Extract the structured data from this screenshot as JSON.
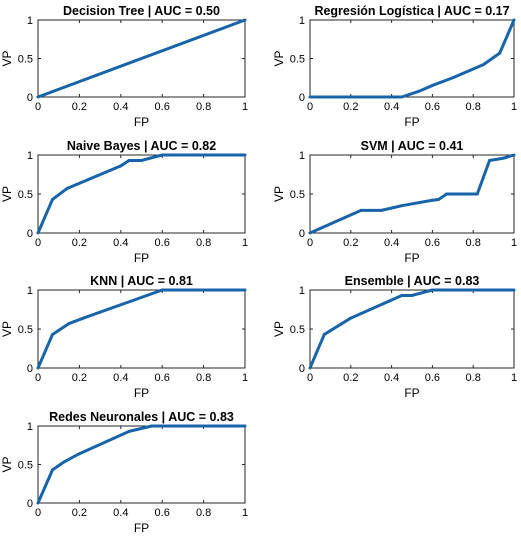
{
  "chart_data": [
    {
      "type": "line",
      "title": "Decision Tree | AUC = 0.50",
      "xlabel": "FP",
      "ylabel": "VP",
      "xlim": [
        0,
        1
      ],
      "ylim": [
        0,
        1
      ],
      "xticks": [
        "0",
        "0.2",
        "0.4",
        "0.6",
        "0.8",
        "1"
      ],
      "yticks": [
        "0",
        "0.5",
        "1"
      ],
      "grid": false,
      "series": [
        {
          "color": "#1764ab",
          "x": [
            0,
            1
          ],
          "y": [
            0,
            1
          ]
        }
      ]
    },
    {
      "type": "line",
      "title": "Regresión Logística | AUC = 0.17",
      "xlabel": "FP",
      "ylabel": "VP",
      "xlim": [
        0,
        1
      ],
      "ylim": [
        0,
        1
      ],
      "xticks": [
        "0",
        "0.2",
        "0.4",
        "0.6",
        "0.8",
        "1"
      ],
      "yticks": [
        "0",
        "0.5",
        "1"
      ],
      "grid": false,
      "series": [
        {
          "color": "#1764ab",
          "x": [
            0,
            0.45,
            0.53,
            0.6,
            0.7,
            0.85,
            0.93,
            1
          ],
          "y": [
            0,
            0,
            0.07,
            0.15,
            0.25,
            0.42,
            0.57,
            1
          ]
        }
      ]
    },
    {
      "type": "line",
      "title": "Naive Bayes | AUC = 0.82",
      "xlabel": "FP",
      "ylabel": "VP",
      "xlim": [
        0,
        1
      ],
      "ylim": [
        0,
        1
      ],
      "xticks": [
        "0",
        "0.2",
        "0.4",
        "0.6",
        "0.8",
        "1"
      ],
      "yticks": [
        "0",
        "0.5",
        "1"
      ],
      "grid": false,
      "series": [
        {
          "color": "#1764ab",
          "x": [
            0,
            0.07,
            0.14,
            0.4,
            0.44,
            0.5,
            0.6,
            1
          ],
          "y": [
            0,
            0.43,
            0.57,
            0.86,
            0.93,
            0.93,
            1,
            1
          ]
        }
      ]
    },
    {
      "type": "line",
      "title": "SVM | AUC = 0.41",
      "xlabel": "FP",
      "ylabel": "VP",
      "xlim": [
        0,
        1
      ],
      "ylim": [
        0,
        1
      ],
      "xticks": [
        "0",
        "0.2",
        "0.4",
        "0.6",
        "0.8",
        "1"
      ],
      "yticks": [
        "0",
        "0.5",
        "1"
      ],
      "grid": false,
      "series": [
        {
          "color": "#1764ab",
          "x": [
            0,
            0.25,
            0.35,
            0.45,
            0.6,
            0.63,
            0.67,
            0.82,
            0.88,
            0.95,
            1
          ],
          "y": [
            0,
            0.29,
            0.29,
            0.35,
            0.42,
            0.43,
            0.5,
            0.5,
            0.93,
            0.96,
            1
          ]
        }
      ]
    },
    {
      "type": "line",
      "title": "KNN | AUC = 0.81",
      "xlabel": "FP",
      "ylabel": "VP",
      "xlim": [
        0,
        1
      ],
      "ylim": [
        0,
        1
      ],
      "xticks": [
        "0",
        "0.2",
        "0.4",
        "0.6",
        "0.8",
        "1"
      ],
      "yticks": [
        "0",
        "0.5",
        "1"
      ],
      "grid": false,
      "series": [
        {
          "color": "#1764ab",
          "x": [
            0,
            0.07,
            0.15,
            0.22,
            0.6,
            1
          ],
          "y": [
            0,
            0.43,
            0.57,
            0.64,
            1,
            1
          ]
        }
      ]
    },
    {
      "type": "line",
      "title": "Ensemble | AUC = 0.83",
      "xlabel": "FP",
      "ylabel": "VP",
      "xlim": [
        0,
        1
      ],
      "ylim": [
        0,
        1
      ],
      "xticks": [
        "0",
        "0.2",
        "0.4",
        "0.6",
        "0.8",
        "1"
      ],
      "yticks": [
        "0",
        "0.5",
        "1"
      ],
      "grid": false,
      "series": [
        {
          "color": "#1764ab",
          "x": [
            0,
            0.07,
            0.2,
            0.45,
            0.5,
            0.6,
            1
          ],
          "y": [
            0,
            0.43,
            0.64,
            0.93,
            0.93,
            1,
            1
          ]
        }
      ]
    },
    {
      "type": "line",
      "title": "Redes Neuronales | AUC = 0.83",
      "xlabel": "FP",
      "ylabel": "VP",
      "xlim": [
        0,
        1
      ],
      "ylim": [
        0,
        1
      ],
      "xticks": [
        "0",
        "0.2",
        "0.4",
        "0.6",
        "0.8",
        "1"
      ],
      "yticks": [
        "0",
        "0.5",
        "1"
      ],
      "grid": false,
      "series": [
        {
          "color": "#1764ab",
          "x": [
            0,
            0.07,
            0.13,
            0.2,
            0.44,
            0.55,
            1
          ],
          "y": [
            0,
            0.43,
            0.54,
            0.64,
            0.93,
            1,
            1
          ]
        }
      ]
    }
  ]
}
